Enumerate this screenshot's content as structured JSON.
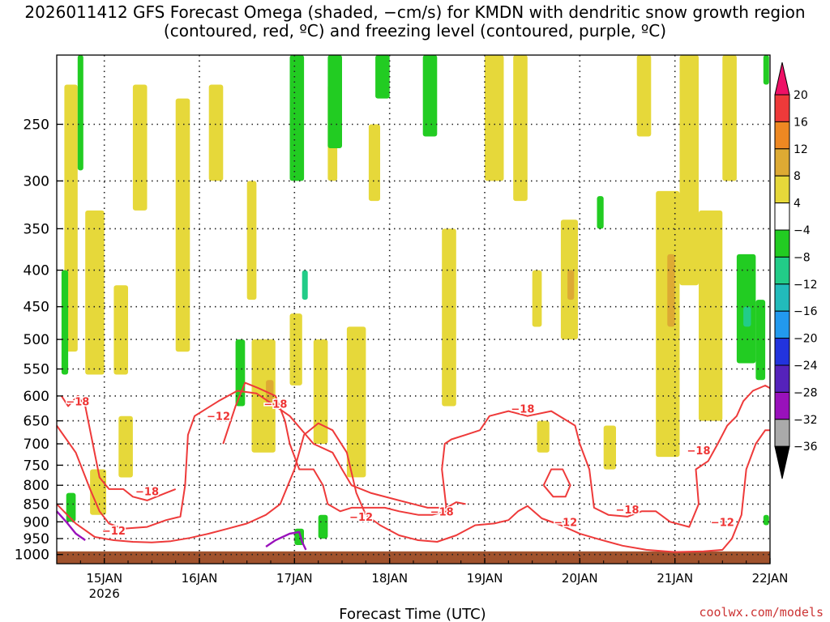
{
  "chart_data": {
    "type": "heatmap",
    "title": "2026011412 GFS Forecast Omega (shaded, −cm/s) for KMDN with dendritic snow growth region (contoured, red, ºC) and freezing level (contoured, purple, ºC)",
    "xlabel": "Forecast Time (UTC)",
    "ylabel": "",
    "credit": "coolwx.com/models",
    "x_ticks": [
      "15JAN",
      "16JAN",
      "17JAN",
      "18JAN",
      "19JAN",
      "20JAN",
      "21JAN",
      "22JAN"
    ],
    "x_year": "2026",
    "x_range_days": [
      14.5,
      22.0
    ],
    "y_ticks": [
      250,
      300,
      350,
      400,
      450,
      500,
      550,
      600,
      650,
      700,
      750,
      800,
      850,
      900,
      950,
      1000
    ],
    "y_range_hpa": [
      200,
      1030
    ],
    "colorbar": {
      "levels": [
        20,
        16,
        12,
        8,
        4,
        -4,
        -8,
        -12,
        -16,
        -20,
        -24,
        -28,
        -32,
        -36
      ],
      "colors": [
        "#ee1166",
        "#ee3a3a",
        "#ee8822",
        "#ddaa33",
        "#e6d83a",
        "#ffffff",
        "#22cc22",
        "#22cc88",
        "#22bbbb",
        "#2299ee",
        "#2233dd",
        "#5522bb",
        "#9911bb",
        "#aaaaaa",
        "#000000"
      ]
    },
    "omega_regions": [
      {
        "value": 6,
        "t0": 14.58,
        "t1": 14.72,
        "p0": 220,
        "p1": 520
      },
      {
        "value": 6,
        "t0": 14.8,
        "t1": 15.0,
        "p0": 330,
        "p1": 560
      },
      {
        "value": 6,
        "t0": 15.1,
        "t1": 15.25,
        "p0": 420,
        "p1": 560
      },
      {
        "value": 6,
        "t0": 15.15,
        "t1": 15.3,
        "p0": 640,
        "p1": 780
      },
      {
        "value": 6,
        "t0": 14.85,
        "t1": 15.02,
        "p0": 760,
        "p1": 880
      },
      {
        "value": 6,
        "t0": 15.3,
        "t1": 15.45,
        "p0": 220,
        "p1": 330
      },
      {
        "value": 6,
        "t0": 15.75,
        "t1": 15.9,
        "p0": 230,
        "p1": 520
      },
      {
        "value": 6,
        "t0": 16.1,
        "t1": 16.25,
        "p0": 220,
        "p1": 300
      },
      {
        "value": 6,
        "t0": 16.5,
        "t1": 16.6,
        "p0": 300,
        "p1": 440
      },
      {
        "value": 6,
        "t0": 16.55,
        "t1": 16.8,
        "p0": 500,
        "p1": 720
      },
      {
        "value": 6,
        "t0": 16.95,
        "t1": 17.08,
        "p0": 460,
        "p1": 580
      },
      {
        "value": 6,
        "t0": 17.2,
        "t1": 17.35,
        "p0": 500,
        "p1": 700
      },
      {
        "value": 6,
        "t0": 17.55,
        "t1": 17.75,
        "p0": 480,
        "p1": 780
      },
      {
        "value": 6,
        "t0": 17.35,
        "t1": 17.45,
        "p0": 220,
        "p1": 300
      },
      {
        "value": 6,
        "t0": 17.78,
        "t1": 17.9,
        "p0": 250,
        "p1": 320
      },
      {
        "value": 6,
        "t0": 18.55,
        "t1": 18.7,
        "p0": 350,
        "p1": 620
      },
      {
        "value": 6,
        "t0": 19.0,
        "t1": 19.2,
        "p0": 200,
        "p1": 300
      },
      {
        "value": 6,
        "t0": 19.3,
        "t1": 19.45,
        "p0": 200,
        "p1": 320
      },
      {
        "value": 6,
        "t0": 19.5,
        "t1": 19.6,
        "p0": 400,
        "p1": 480
      },
      {
        "value": 6,
        "t0": 19.55,
        "t1": 19.68,
        "p0": 650,
        "p1": 720
      },
      {
        "value": 6,
        "t0": 20.25,
        "t1": 20.38,
        "p0": 660,
        "p1": 760
      },
      {
        "value": 6,
        "t0": 19.8,
        "t1": 19.98,
        "p0": 340,
        "p1": 500
      },
      {
        "value": 6,
        "t0": 20.6,
        "t1": 20.75,
        "p0": 200,
        "p1": 260
      },
      {
        "value": 6,
        "t0": 20.8,
        "t1": 21.05,
        "p0": 310,
        "p1": 730
      },
      {
        "value": 6,
        "t0": 21.05,
        "t1": 21.25,
        "p0": 200,
        "p1": 420
      },
      {
        "value": 6,
        "t0": 21.25,
        "t1": 21.5,
        "p0": 330,
        "p1": 650
      },
      {
        "value": 6,
        "t0": 21.5,
        "t1": 21.65,
        "p0": 200,
        "p1": 300
      },
      {
        "value": 10,
        "t0": 16.7,
        "t1": 16.78,
        "p0": 570,
        "p1": 620
      },
      {
        "value": 10,
        "t0": 20.92,
        "t1": 21.0,
        "p0": 380,
        "p1": 480
      },
      {
        "value": 10,
        "t0": 19.87,
        "t1": 19.94,
        "p0": 400,
        "p1": 440
      },
      {
        "value": -6,
        "t0": 14.55,
        "t1": 14.62,
        "p0": 400,
        "p1": 560
      },
      {
        "value": -6,
        "t0": 14.6,
        "t1": 14.7,
        "p0": 820,
        "p1": 900
      },
      {
        "value": -6,
        "t0": 14.72,
        "t1": 14.78,
        "p0": 200,
        "p1": 290
      },
      {
        "value": -6,
        "t0": 16.38,
        "t1": 16.48,
        "p0": 500,
        "p1": 620
      },
      {
        "value": -6,
        "t0": 16.95,
        "t1": 17.1,
        "p0": 200,
        "p1": 300
      },
      {
        "value": -6,
        "t0": 17.0,
        "t1": 17.1,
        "p0": 920,
        "p1": 970
      },
      {
        "value": -6,
        "t0": 17.25,
        "t1": 17.35,
        "p0": 880,
        "p1": 950
      },
      {
        "value": -6,
        "t0": 17.35,
        "t1": 17.5,
        "p0": 200,
        "p1": 270
      },
      {
        "value": -6,
        "t0": 17.85,
        "t1": 18.0,
        "p0": 200,
        "p1": 230
      },
      {
        "value": -6,
        "t0": 18.35,
        "t1": 18.5,
        "p0": 200,
        "p1": 260
      },
      {
        "value": -6,
        "t0": 20.18,
        "t1": 20.25,
        "p0": 315,
        "p1": 350
      },
      {
        "value": -6,
        "t0": 21.65,
        "t1": 21.85,
        "p0": 380,
        "p1": 540
      },
      {
        "value": -6,
        "t0": 21.85,
        "t1": 21.95,
        "p0": 440,
        "p1": 570
      },
      {
        "value": -6,
        "t0": 21.93,
        "t1": 21.99,
        "p0": 200,
        "p1": 220
      },
      {
        "value": -6,
        "t0": 21.93,
        "t1": 21.99,
        "p0": 880,
        "p1": 910
      },
      {
        "value": -10,
        "t0": 17.08,
        "t1": 17.14,
        "p0": 400,
        "p1": 440
      },
      {
        "value": -10,
        "t0": 21.72,
        "t1": 21.8,
        "p0": 450,
        "p1": 480
      }
    ],
    "dendritic_contours": [
      {
        "level": -12,
        "points": [
          [
            14.5,
            660
          ],
          [
            14.7,
            720
          ],
          [
            14.85,
            810
          ],
          [
            14.95,
            870
          ],
          [
            15.05,
            905
          ],
          [
            15.2,
            920
          ],
          [
            15.45,
            915
          ],
          [
            15.65,
            895
          ],
          [
            15.8,
            885
          ],
          [
            15.85,
            800
          ],
          [
            15.88,
            680
          ],
          [
            15.95,
            640
          ],
          [
            16.2,
            610
          ],
          [
            16.4,
            590
          ],
          [
            16.6,
            595
          ],
          [
            16.8,
            620
          ],
          [
            16.95,
            640
          ],
          [
            17.2,
            700
          ],
          [
            17.4,
            720
          ],
          [
            17.5,
            760
          ],
          [
            17.6,
            800
          ],
          [
            17.8,
            820
          ],
          [
            18.1,
            840
          ],
          [
            18.4,
            860
          ],
          [
            18.6,
            860
          ],
          [
            18.7,
            845
          ],
          [
            18.8,
            850
          ]
        ]
      },
      {
        "level": -12,
        "points": [
          [
            14.5,
            850
          ],
          [
            14.7,
            905
          ],
          [
            14.9,
            945
          ],
          [
            15.1,
            955
          ],
          [
            15.3,
            960
          ],
          [
            15.5,
            962
          ],
          [
            15.7,
            958
          ],
          [
            15.9,
            948
          ],
          [
            16.1,
            935
          ],
          [
            16.3,
            920
          ],
          [
            16.5,
            905
          ],
          [
            16.7,
            880
          ],
          [
            16.85,
            850
          ],
          [
            17.0,
            760
          ],
          [
            17.1,
            680
          ],
          [
            17.25,
            655
          ],
          [
            17.4,
            670
          ],
          [
            17.55,
            720
          ],
          [
            17.65,
            820
          ],
          [
            17.75,
            880
          ],
          [
            17.9,
            910
          ],
          [
            18.1,
            940
          ],
          [
            18.3,
            955
          ],
          [
            18.5,
            960
          ],
          [
            18.7,
            940
          ],
          [
            18.9,
            910
          ],
          [
            19.1,
            905
          ],
          [
            19.25,
            895
          ],
          [
            19.35,
            870
          ],
          [
            19.45,
            855
          ],
          [
            19.6,
            890
          ],
          [
            19.8,
            910
          ],
          [
            20.0,
            935
          ],
          [
            20.2,
            952
          ],
          [
            20.45,
            972
          ],
          [
            20.7,
            985
          ],
          [
            21.0,
            992
          ],
          [
            21.3,
            990
          ],
          [
            21.5,
            985
          ],
          [
            21.6,
            950
          ],
          [
            21.7,
            880
          ],
          [
            21.75,
            760
          ],
          [
            21.85,
            700
          ],
          [
            21.95,
            670
          ],
          [
            22.0,
            670
          ]
        ]
      },
      {
        "level": -18,
        "points": [
          [
            14.55,
            600
          ],
          [
            14.62,
            620
          ],
          [
            14.72,
            600
          ],
          [
            14.8,
            620
          ],
          [
            14.95,
            780
          ],
          [
            15.05,
            810
          ],
          [
            15.2,
            810
          ],
          [
            15.3,
            830
          ],
          [
            15.45,
            840
          ],
          [
            15.65,
            820
          ],
          [
            15.75,
            810
          ]
        ]
      },
      {
        "level": -18,
        "points": [
          [
            16.25,
            700
          ],
          [
            16.38,
            620
          ],
          [
            16.48,
            575
          ],
          [
            16.62,
            585
          ],
          [
            16.8,
            600
          ],
          [
            16.9,
            650
          ],
          [
            16.95,
            700
          ],
          [
            17.05,
            760
          ],
          [
            17.2,
            760
          ],
          [
            17.3,
            800
          ],
          [
            17.35,
            850
          ],
          [
            17.48,
            870
          ],
          [
            17.6,
            860
          ],
          [
            17.75,
            860
          ],
          [
            17.95,
            860
          ],
          [
            18.1,
            870
          ],
          [
            18.3,
            880
          ],
          [
            18.45,
            880
          ],
          [
            18.6,
            870
          ],
          [
            18.55,
            760
          ],
          [
            18.58,
            700
          ],
          [
            18.65,
            690
          ],
          [
            18.8,
            680
          ],
          [
            18.95,
            670
          ],
          [
            19.05,
            640
          ],
          [
            19.25,
            630
          ],
          [
            19.45,
            640
          ],
          [
            19.7,
            630
          ],
          [
            19.95,
            660
          ],
          [
            20.0,
            700
          ],
          [
            20.1,
            760
          ],
          [
            20.15,
            860
          ],
          [
            20.3,
            880
          ],
          [
            20.5,
            885
          ],
          [
            20.65,
            870
          ],
          [
            20.8,
            870
          ],
          [
            20.95,
            900
          ],
          [
            21.15,
            915
          ],
          [
            21.25,
            850
          ],
          [
            21.22,
            760
          ],
          [
            21.35,
            740
          ],
          [
            21.45,
            700
          ],
          [
            21.55,
            660
          ],
          [
            21.65,
            640
          ],
          [
            21.72,
            610
          ],
          [
            21.82,
            590
          ],
          [
            21.95,
            580
          ],
          [
            22.0,
            585
          ]
        ]
      },
      {
        "level": -18,
        "points": [
          [
            19.62,
            800
          ],
          [
            19.7,
            760
          ],
          [
            19.82,
            760
          ],
          [
            19.9,
            800
          ],
          [
            19.85,
            830
          ],
          [
            19.72,
            830
          ],
          [
            19.62,
            800
          ]
        ]
      }
    ],
    "freezing_contours": [
      {
        "level": 0,
        "points": [
          [
            14.5,
            870
          ],
          [
            14.6,
            900
          ],
          [
            14.7,
            935
          ],
          [
            14.8,
            955
          ]
        ]
      },
      {
        "level": 0,
        "points": [
          [
            16.7,
            975
          ],
          [
            16.8,
            955
          ],
          [
            16.95,
            935
          ],
          [
            17.05,
            930
          ],
          [
            17.08,
            960
          ],
          [
            17.12,
            985
          ]
        ]
      }
    ],
    "contour_labels": [
      {
        "text": "−18",
        "t": 14.72,
        "p": 610
      },
      {
        "text": "−18",
        "t": 15.45,
        "p": 815
      },
      {
        "text": "−12",
        "t": 15.1,
        "p": 925
      },
      {
        "text": "−12",
        "t": 16.2,
        "p": 640
      },
      {
        "text": "−18",
        "t": 16.8,
        "p": 615
      },
      {
        "text": "−12",
        "t": 17.7,
        "p": 885
      },
      {
        "text": "−18",
        "t": 18.55,
        "p": 870
      },
      {
        "text": "−18",
        "t": 19.4,
        "p": 625
      },
      {
        "text": "−12",
        "t": 19.85,
        "p": 900
      },
      {
        "text": "−18",
        "t": 20.5,
        "p": 865
      },
      {
        "text": "−18",
        "t": 21.25,
        "p": 715
      },
      {
        "text": "−12",
        "t": 21.5,
        "p": 900
      }
    ]
  }
}
